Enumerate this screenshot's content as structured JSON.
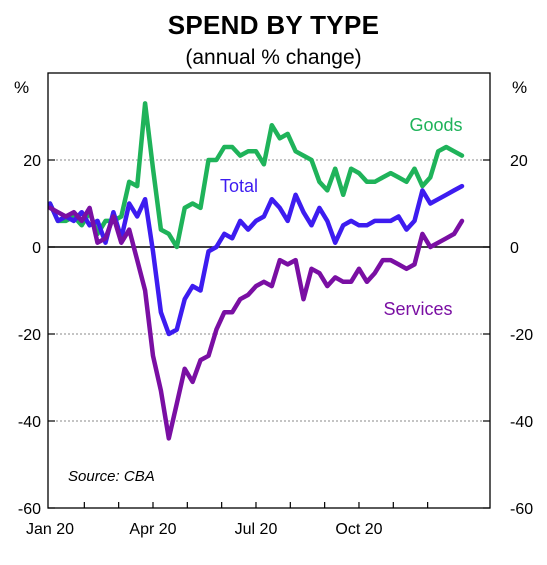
{
  "chart_data": {
    "type": "line",
    "title": "SPEND BY TYPE",
    "subtitle": "(annual % change)",
    "y_unit_left": "%",
    "y_unit_right": "%",
    "ylim": [
      -60,
      40
    ],
    "yticks": [
      "20",
      "0",
      "-20",
      "-40",
      "-60"
    ],
    "ytick_values": [
      20,
      0,
      -20,
      -40,
      -60
    ],
    "gridlines": [
      20,
      -20,
      -40
    ],
    "zero_line": 0,
    "x_week_range": [
      0,
      52
    ],
    "x_tick_labels": [
      "Jan 20",
      "Apr 20",
      "Jul 20",
      "Oct 20"
    ],
    "x_tick_weeks": [
      0,
      13,
      26,
      39
    ],
    "source": "Source: CBA",
    "series": [
      {
        "name": "Goods",
        "color": "#1fb35a",
        "values": [
          10,
          6,
          6,
          7,
          5,
          8,
          3,
          6,
          6,
          7,
          15,
          14,
          33,
          18,
          4,
          3,
          0,
          9,
          10,
          9,
          20,
          20,
          23,
          23,
          21,
          22,
          22,
          19,
          28,
          25,
          26,
          22,
          21,
          20,
          15,
          13,
          18,
          12,
          18,
          17,
          15,
          15,
          16,
          17,
          16,
          15,
          18,
          14,
          16,
          22,
          23,
          22,
          21
        ]
      },
      {
        "name": "Total",
        "color": "#3d1cf0",
        "values": [
          10,
          6,
          7,
          6,
          8,
          5,
          6,
          1,
          8,
          2,
          10,
          7,
          11,
          -1,
          -15,
          -20,
          -19,
          -12,
          -9,
          -10,
          -1,
          0,
          3,
          2,
          6,
          4,
          6,
          7,
          11,
          9,
          6,
          12,
          8,
          5,
          9,
          6,
          1,
          5,
          6,
          5,
          5,
          6,
          6,
          6,
          7,
          4,
          6,
          13,
          10,
          11,
          12,
          13,
          14
        ]
      },
      {
        "name": "Services",
        "color": "#7a0fa3",
        "values": [
          9,
          8,
          7,
          8,
          6,
          9,
          1,
          2,
          7,
          1,
          4,
          -3,
          -10,
          -25,
          -33,
          -44,
          -36,
          -28,
          -31,
          -26,
          -25,
          -19,
          -15,
          -15,
          -12,
          -11,
          -9,
          -8,
          -9,
          -3,
          -4,
          -3,
          -12,
          -5,
          -6,
          -9,
          -7,
          -8,
          -8,
          -5,
          -8,
          -6,
          -3,
          -3,
          -4,
          -5,
          -4,
          3,
          0,
          1,
          2,
          3,
          6
        ]
      }
    ]
  }
}
